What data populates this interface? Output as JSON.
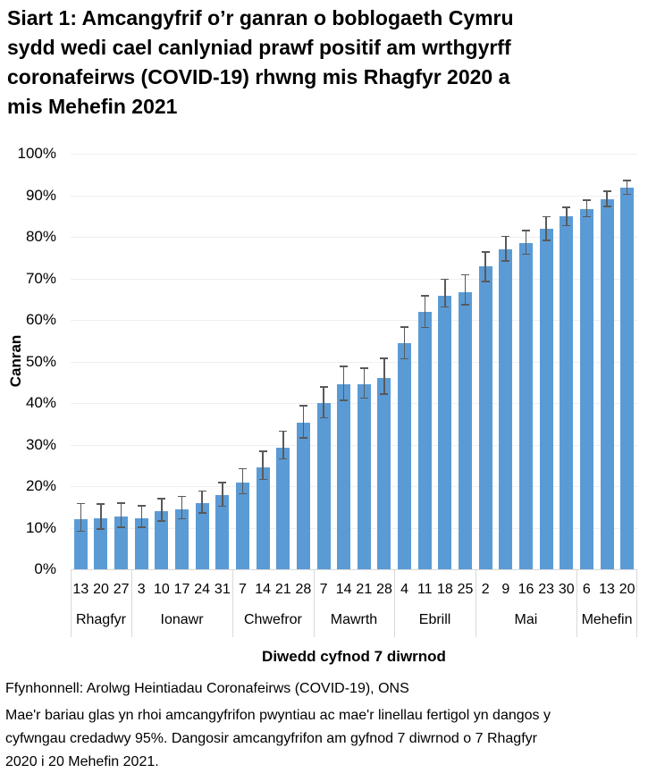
{
  "title": {
    "lines": [
      "Siart 1: Amcangyfrif o’r ganran o boblogaeth Cymru",
      "sydd wedi cael canlyniad prawf positif am wrthgyrff",
      "coronafeirws (COVID-19) rhwng mis Rhagfyr 2020 a",
      "mis Mehefin 2021"
    ]
  },
  "chart": {
    "ylabel": "Canran",
    "xlabel": "Diwedd cyfnod 7 diwrnod",
    "y_tick_labels": [
      "0%",
      "10%",
      "20%",
      "30%",
      "40%",
      "50%",
      "60%",
      "70%",
      "80%",
      "90%",
      "100%"
    ]
  },
  "chart_data": {
    "type": "bar",
    "title": "Siart 1: Amcangyfrif o’r ganran o boblogaeth Cymru sydd wedi cael canlyniad prawf positif am wrthgyrff coronafeirws (COVID-19) rhwng mis Rhagfyr 2020 a mis Mehefin 2021",
    "xlabel": "Diwedd cyfnod 7 diwrnod",
    "ylabel": "Canran",
    "ylim": [
      0,
      100
    ],
    "grid": true,
    "legend": false,
    "dates": [
      "13",
      "20",
      "27",
      "3",
      "10",
      "17",
      "24",
      "31",
      "7",
      "14",
      "21",
      "28",
      "7",
      "14",
      "21",
      "28",
      "4",
      "11",
      "18",
      "25",
      "2",
      "9",
      "16",
      "23",
      "30",
      "6",
      "13",
      "20"
    ],
    "month_groups": [
      {
        "label": "Rhagfyr",
        "span": 3
      },
      {
        "label": "Ionawr",
        "span": 5
      },
      {
        "label": "Chwefror",
        "span": 4
      },
      {
        "label": "Mawrth",
        "span": 4
      },
      {
        "label": "Ebrill",
        "span": 4
      },
      {
        "label": "Mai",
        "span": 5
      },
      {
        "label": "Mehefin",
        "span": 3
      }
    ],
    "values": [
      12,
      12.3,
      12.7,
      12.3,
      13.9,
      14.4,
      15.9,
      17.9,
      20.8,
      24.6,
      29.3,
      35.2,
      39.9,
      44.5,
      44.5,
      46,
      54.5,
      62,
      65.9,
      66.7,
      72.8,
      77,
      78.5,
      82,
      84.9,
      86.7,
      89.1,
      91.8
    ],
    "ci_low": [
      9,
      9.5,
      10,
      9.9,
      11.5,
      12,
      13.4,
      15,
      18,
      21.4,
      26.4,
      31.5,
      36.3,
      40.5,
      41,
      42,
      50.5,
      58,
      63,
      63.5,
      69.1,
      74,
      75.6,
      79,
      82.5,
      84.7,
      87.2,
      90.1
    ],
    "ci_high": [
      16,
      15.9,
      16.1,
      15.4,
      17.1,
      17.7,
      19,
      21,
      24.4,
      28.6,
      33.4,
      39.5,
      44,
      49,
      48.5,
      50.9,
      58.4,
      66,
      69.9,
      71,
      76.5,
      80.3,
      81.7,
      85,
      87.3,
      89,
      91.1,
      93.7
    ]
  },
  "footer": {
    "source": "Ffynhonnell: Arolwg Heintiadau Coronafeirws (COVID-19), ONS",
    "note_lines": [
      "Mae'r bariau glas yn rhoi amcangyfrifon pwyntiau ac mae'r linellau fertigol yn dangos y",
      "cyfwngau credadwy 95%. Dangosir amcangyfrifon am gyfnod 7 diwrnod o 7 Rhagfyr",
      "2020 i 20 Mehefin 2021."
    ]
  },
  "colors": {
    "bar": "#5B9BD5",
    "error_bar": "#595959",
    "gridline": "#EFEFEF",
    "axis_line": "#D9D9D9",
    "text": "#000000"
  }
}
